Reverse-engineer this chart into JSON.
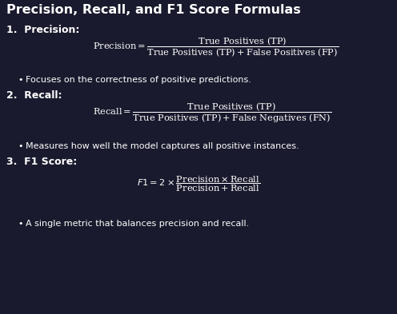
{
  "background_color": "#1a1a2e",
  "title": "Precision, Recall, and F1 Score Formulas",
  "title_color": "#ffffff",
  "title_fontsize": 11.5,
  "text_color": "#ffffff",
  "formula_color": "#ffffff",
  "section_labels": [
    "1.  Precision:",
    "2.  Recall:",
    "3.  F1 Score:"
  ],
  "bullet_texts": [
    "Focuses on the correctness of positive predictions.",
    "Measures how well the model captures all positive instances.",
    "A single metric that balances precision and recall."
  ],
  "figsize": [
    4.96,
    3.93
  ],
  "dpi": 100
}
